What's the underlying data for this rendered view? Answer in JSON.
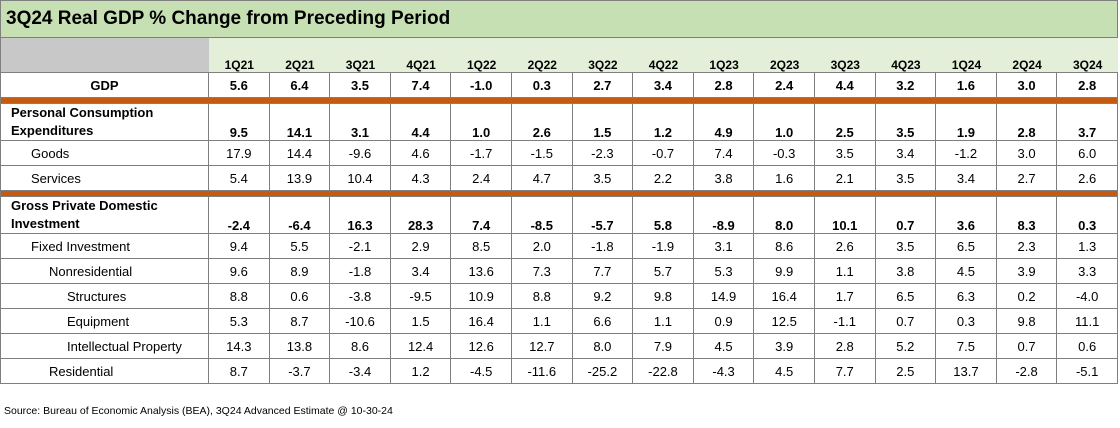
{
  "title": "3Q24 Real GDP % Change from Preceding Period",
  "columns": [
    "1Q21",
    "2Q21",
    "3Q21",
    "4Q21",
    "1Q22",
    "2Q22",
    "3Q22",
    "4Q22",
    "1Q23",
    "2Q23",
    "3Q23",
    "4Q23",
    "1Q24",
    "2Q24",
    "3Q24"
  ],
  "rows": [
    {
      "label": "GDP",
      "level": 0,
      "bold": true,
      "values": [
        "5.6",
        "6.4",
        "3.5",
        "7.4",
        "-1.0",
        "0.3",
        "2.7",
        "3.4",
        "2.8",
        "2.4",
        "4.4",
        "3.2",
        "1.6",
        "3.0",
        "2.8"
      ]
    },
    {
      "label": "Personal Consumption Expenditures",
      "level": 0,
      "bold": true,
      "values": [
        "9.5",
        "14.1",
        "3.1",
        "4.4",
        "1.0",
        "2.6",
        "1.5",
        "1.2",
        "4.9",
        "1.0",
        "2.5",
        "3.5",
        "1.9",
        "2.8",
        "3.7"
      ]
    },
    {
      "label": "Goods",
      "level": 1,
      "bold": false,
      "values": [
        "17.9",
        "14.4",
        "-9.6",
        "4.6",
        "-1.7",
        "-1.5",
        "-2.3",
        "-0.7",
        "7.4",
        "-0.3",
        "3.5",
        "3.4",
        "-1.2",
        "3.0",
        "6.0"
      ]
    },
    {
      "label": "Services",
      "level": 1,
      "bold": false,
      "values": [
        "5.4",
        "13.9",
        "10.4",
        "4.3",
        "2.4",
        "4.7",
        "3.5",
        "2.2",
        "3.8",
        "1.6",
        "2.1",
        "3.5",
        "3.4",
        "2.7",
        "2.6"
      ]
    },
    {
      "label": "Gross Private Domestic Investment",
      "level": 0,
      "bold": true,
      "values": [
        "-2.4",
        "-6.4",
        "16.3",
        "28.3",
        "7.4",
        "-8.5",
        "-5.7",
        "5.8",
        "-8.9",
        "8.0",
        "10.1",
        "0.7",
        "3.6",
        "8.3",
        "0.3"
      ]
    },
    {
      "label": "Fixed Investment",
      "level": 1,
      "bold": false,
      "values": [
        "9.4",
        "5.5",
        "-2.1",
        "2.9",
        "8.5",
        "2.0",
        "-1.8",
        "-1.9",
        "3.1",
        "8.6",
        "2.6",
        "3.5",
        "6.5",
        "2.3",
        "1.3"
      ]
    },
    {
      "label": "Nonresidential",
      "level": 2,
      "bold": false,
      "values": [
        "9.6",
        "8.9",
        "-1.8",
        "3.4",
        "13.6",
        "7.3",
        "7.7",
        "5.7",
        "5.3",
        "9.9",
        "1.1",
        "3.8",
        "4.5",
        "3.9",
        "3.3"
      ]
    },
    {
      "label": "Structures",
      "level": 3,
      "bold": false,
      "values": [
        "8.8",
        "0.6",
        "-3.8",
        "-9.5",
        "10.9",
        "8.8",
        "9.2",
        "9.8",
        "14.9",
        "16.4",
        "1.7",
        "6.5",
        "6.3",
        "0.2",
        "-4.0"
      ]
    },
    {
      "label": "Equipment",
      "level": 3,
      "bold": false,
      "values": [
        "5.3",
        "8.7",
        "-10.6",
        "1.5",
        "16.4",
        "1.1",
        "6.6",
        "1.1",
        "0.9",
        "12.5",
        "-1.1",
        "0.7",
        "0.3",
        "9.8",
        "11.1"
      ]
    },
    {
      "label": "Intellectual Property",
      "level": 3,
      "bold": false,
      "values": [
        "14.3",
        "13.8",
        "8.6",
        "12.4",
        "12.6",
        "12.7",
        "8.0",
        "7.9",
        "4.5",
        "3.9",
        "2.8",
        "5.2",
        "7.5",
        "0.7",
        "0.6"
      ]
    },
    {
      "label": "Residential",
      "level": 2,
      "bold": false,
      "values": [
        "8.7",
        "-3.7",
        "-3.4",
        "1.2",
        "-4.5",
        "-11.6",
        "-25.2",
        "-22.8",
        "-4.3",
        "4.5",
        "7.7",
        "2.5",
        "13.7",
        "-2.8",
        "-5.1"
      ]
    }
  ],
  "source": "Source: Bureau of Economic Analysis (BEA), 3Q24 Advanced Estimate @ 10-30-24",
  "colors": {
    "title_bg": "#c6e0b4",
    "header_bg": "#e3efd9",
    "separator": "#c55a11"
  }
}
